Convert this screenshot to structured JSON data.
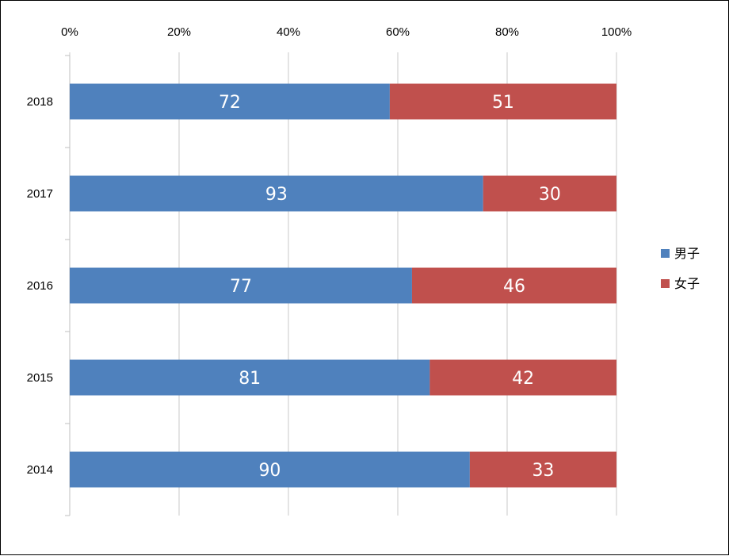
{
  "chart_data": {
    "type": "bar",
    "orientation": "horizontal",
    "stacking": "percent",
    "categories": [
      "2018",
      "2017",
      "2016",
      "2015",
      "2014"
    ],
    "series": [
      {
        "name": "男子",
        "color": "#4f81bd",
        "values": [
          72,
          93,
          77,
          81,
          90
        ]
      },
      {
        "name": "女子",
        "color": "#c0504d",
        "values": [
          51,
          30,
          46,
          42,
          33
        ]
      }
    ],
    "x_ticks": [
      "0%",
      "20%",
      "40%",
      "60%",
      "80%",
      "100%"
    ],
    "xlim": [
      0,
      100
    ],
    "x_axis_position": "top",
    "grid": true,
    "legend": "right",
    "data_labels": true
  }
}
